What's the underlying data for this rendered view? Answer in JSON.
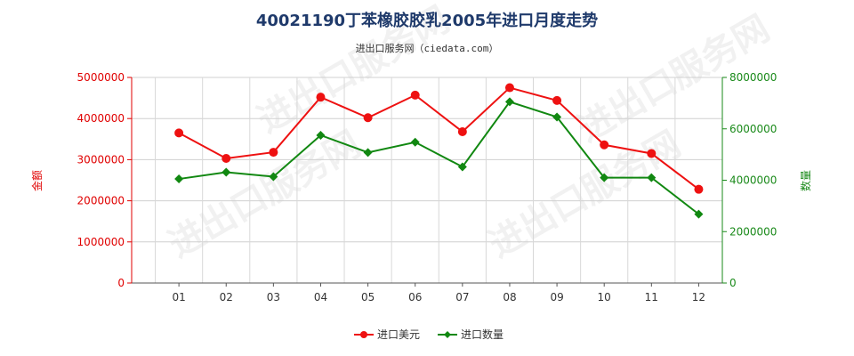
{
  "chart_data": {
    "type": "line",
    "title": "40021190丁苯橡胶胶乳2005年进口月度走势",
    "subtitle": "进出口服务网（ciedata.com）",
    "categories": [
      "01",
      "02",
      "03",
      "04",
      "05",
      "06",
      "07",
      "08",
      "09",
      "10",
      "11",
      "12"
    ],
    "y_left": {
      "label": "金额",
      "ticks": [
        "0",
        "1000000",
        "2000000",
        "3000000",
        "4000000",
        "5000000"
      ],
      "range": [
        0,
        5000000
      ]
    },
    "y_right": {
      "label": "数量",
      "ticks": [
        "0",
        "2000000",
        "4000000",
        "6000000",
        "8000000"
      ],
      "range": [
        0,
        8000000
      ]
    },
    "series": [
      {
        "name": "进口美元",
        "axis": "left",
        "color": "#ee1111",
        "marker": "circle",
        "values": [
          3650000,
          3030000,
          3180000,
          4520000,
          4020000,
          4570000,
          3680000,
          4750000,
          4440000,
          3360000,
          3150000,
          2280000
        ]
      },
      {
        "name": "进口数量",
        "axis": "right",
        "color": "#118811",
        "marker": "diamond",
        "values": [
          4050000,
          4310000,
          4140000,
          5750000,
          5080000,
          5480000,
          4520000,
          7050000,
          6460000,
          4100000,
          4100000,
          2680000
        ]
      }
    ],
    "grid": true,
    "legend_position": "bottom-center",
    "watermark": "进出口服务网"
  }
}
